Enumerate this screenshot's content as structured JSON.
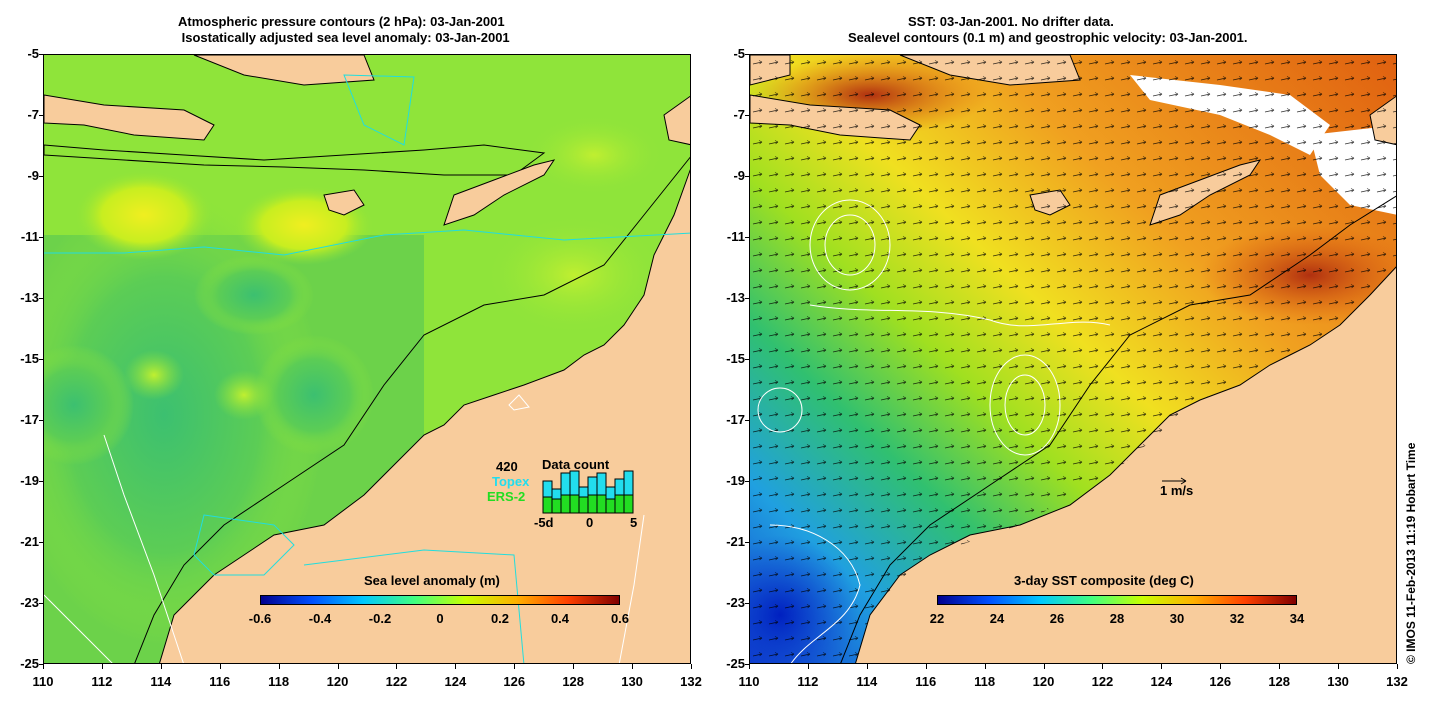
{
  "left_panel": {
    "title_line1": "Atmospheric pressure contours (2 hPa): 03-Jan-2001",
    "title_line2": " Isostatically adjusted sea level anomaly: 03-Jan-2001",
    "colorbar_title": "Sea level anomaly (m)",
    "colorbar_ticks": [
      "-0.6",
      "-0.4",
      "-0.2",
      "0",
      "0.2",
      "0.4",
      "0.6"
    ],
    "inset": {
      "count": "420",
      "title": "Data count",
      "topex_label": "Topex",
      "ers_label": "ERS-2",
      "x_ticks": [
        "-5d",
        "0",
        "5"
      ],
      "topex_color": "#22ddee",
      "ers_color": "#22dd22"
    }
  },
  "right_panel": {
    "title_line1": "SST: 03-Jan-2001. No drifter data.",
    "title_line2": "Sealevel contours (0.1 m) and geostrophic velocity: 03-Jan-2001.",
    "colorbar_title": "3-day SST composite (deg C)",
    "colorbar_ticks": [
      "22",
      "24",
      "26",
      "28",
      "30",
      "32",
      "34"
    ],
    "velocity_scale_label": "1 m/s"
  },
  "axes": {
    "y_ticks": [
      "-5",
      "-7",
      "-9",
      "-11",
      "-13",
      "-15",
      "-17",
      "-19",
      "-21",
      "-23",
      "-25"
    ],
    "x_ticks": [
      "110",
      "112",
      "114",
      "116",
      "118",
      "120",
      "122",
      "124",
      "126",
      "128",
      "130",
      "132"
    ]
  },
  "copyright": "© IMOS 11-Feb-2013 11:19 Hobart Time",
  "colors": {
    "land": "#f8cc9c",
    "sla_base": "#8fe43a",
    "sla_colormap": [
      "#00008f",
      "#0050ff",
      "#00c8ff",
      "#40ff80",
      "#c8ff00",
      "#ffb000",
      "#ff4000",
      "#800000"
    ]
  }
}
